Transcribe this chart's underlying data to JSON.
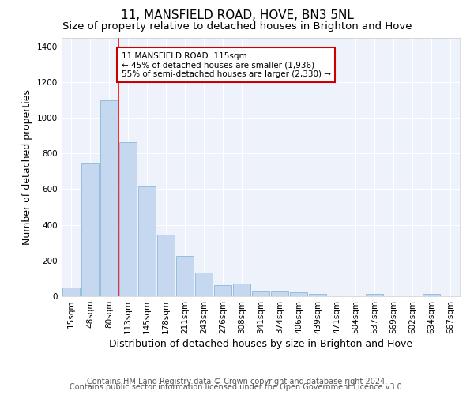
{
  "title": "11, MANSFIELD ROAD, HOVE, BN3 5NL",
  "subtitle": "Size of property relative to detached houses in Brighton and Hove",
  "xlabel": "Distribution of detached houses by size in Brighton and Hove",
  "ylabel": "Number of detached properties",
  "footer_line1": "Contains HM Land Registry data © Crown copyright and database right 2024.",
  "footer_line2": "Contains public sector information licensed under the Open Government Licence v3.0.",
  "categories": [
    "15sqm",
    "48sqm",
    "80sqm",
    "113sqm",
    "145sqm",
    "178sqm",
    "211sqm",
    "243sqm",
    "276sqm",
    "308sqm",
    "341sqm",
    "374sqm",
    "406sqm",
    "439sqm",
    "471sqm",
    "504sqm",
    "537sqm",
    "569sqm",
    "602sqm",
    "634sqm",
    "667sqm"
  ],
  "values": [
    50,
    750,
    1100,
    865,
    615,
    345,
    225,
    135,
    62,
    70,
    30,
    32,
    22,
    15,
    0,
    0,
    12,
    0,
    0,
    12,
    0
  ],
  "bar_color": "#c5d8f0",
  "bar_edgecolor": "#7aafd4",
  "red_line_index": 3,
  "annotation_text_line1": "11 MANSFIELD ROAD: 115sqm",
  "annotation_text_line2": "← 45% of detached houses are smaller (1,936)",
  "annotation_text_line3": "55% of semi-detached houses are larger (2,330) →",
  "annotation_box_facecolor": "#ffffff",
  "annotation_box_edgecolor": "#cc0000",
  "ylim": [
    0,
    1450
  ],
  "plot_bg_color": "#eef2fb",
  "fig_bg_color": "#ffffff",
  "grid_color": "#ffffff",
  "title_fontsize": 11,
  "subtitle_fontsize": 9.5,
  "xlabel_fontsize": 9,
  "ylabel_fontsize": 9,
  "tick_fontsize": 7.5,
  "annotation_fontsize": 7.5,
  "footer_fontsize": 7
}
